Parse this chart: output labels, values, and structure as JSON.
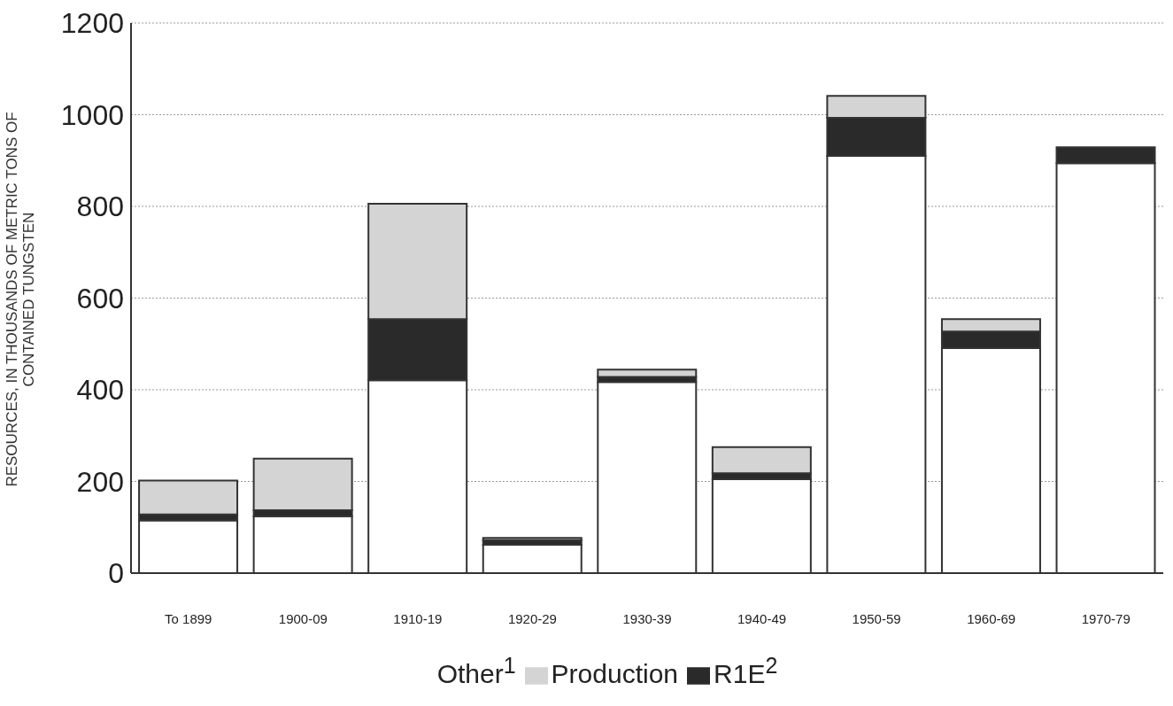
{
  "chart_data": {
    "type": "bar",
    "stacked": true,
    "ylabel": "RESOURCES, IN THOUSANDS OF METRIC TONS OF CONTAINED TUNGSTEN",
    "categories": [
      "To 1899",
      "1900-09",
      "1910-19",
      "1920-29",
      "1930-39",
      "1940-49",
      "1950-59",
      "1960-69",
      "1970-79"
    ],
    "series": [
      {
        "name": "Other$^{1}$",
        "color": "#ffffff",
        "values": [
          115,
          124,
          421,
          62,
          417,
          205,
          910,
          491,
          894
        ]
      },
      {
        "name": "R1E$^{2}$",
        "color": "#2a2a2a",
        "values": [
          13,
          13,
          133,
          10,
          11,
          13,
          83,
          36,
          35
        ]
      },
      {
        "name": "Production",
        "color": "#d4d4d4",
        "values": [
          74,
          113,
          252,
          5,
          16,
          57,
          48,
          27,
          0
        ]
      }
    ],
    "ylim": [
      0,
      1200
    ],
    "yticks": [
      0,
      200,
      400,
      600,
      800,
      1000,
      1200
    ],
    "grid": "y",
    "legend": "bottom"
  }
}
